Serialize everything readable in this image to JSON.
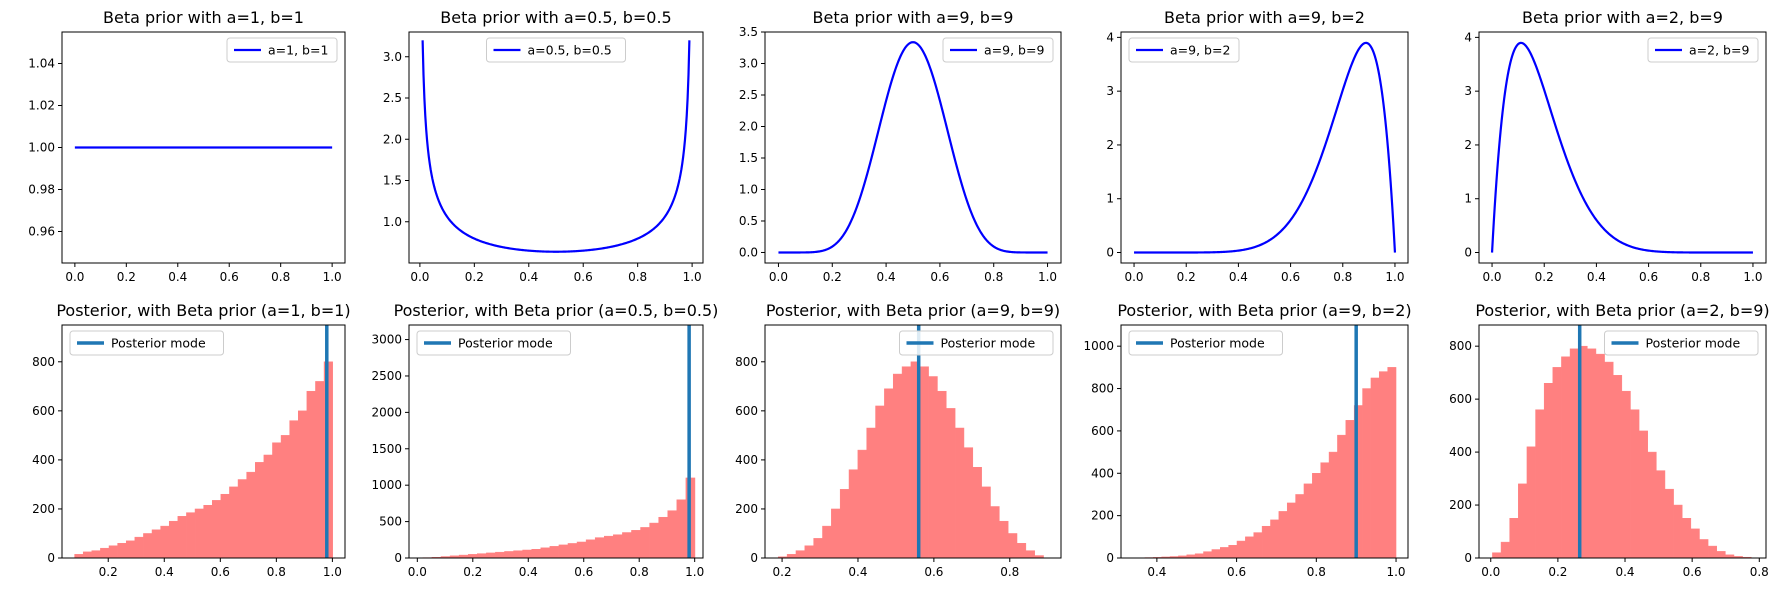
{
  "colors": {
    "prior_line": "#0000ff",
    "hist_fill": "#ff8080",
    "mode_line": "#1f77b4"
  },
  "chart_data": [
    {
      "type": "line",
      "title": "Beta prior with a=1, b=1",
      "series": [
        {
          "name": "a=1, b=1",
          "kind": "beta_pdf",
          "a": 1,
          "b": 1,
          "x_range": [
            0,
            1
          ]
        }
      ],
      "xlim": [
        -0.05,
        1.05
      ],
      "ylim": [
        0.945,
        1.055
      ],
      "xticks": [
        0,
        0.2,
        0.4,
        0.6,
        0.8,
        1
      ],
      "xtick_labels": [
        "0.0",
        "0.2",
        "0.4",
        "0.6",
        "0.8",
        "1.0"
      ],
      "yticks": [
        0.96,
        0.98,
        1.0,
        1.02,
        1.04
      ],
      "ytick_labels": [
        "0.96",
        "0.98",
        "1.00",
        "1.02",
        "1.04"
      ],
      "legend": "top-right"
    },
    {
      "type": "line",
      "title": "Beta prior with a=0.5, b=0.5",
      "series": [
        {
          "name": "a=0.5, b=0.5",
          "kind": "beta_pdf",
          "a": 0.5,
          "b": 0.5,
          "x_range": [
            0.01,
            0.99
          ]
        }
      ],
      "xlim": [
        -0.04,
        1.04
      ],
      "ylim": [
        0.5,
        3.3
      ],
      "xticks": [
        0,
        0.2,
        0.4,
        0.6,
        0.8,
        1
      ],
      "xtick_labels": [
        "0.0",
        "0.2",
        "0.4",
        "0.6",
        "0.8",
        "1.0"
      ],
      "yticks": [
        1.0,
        1.5,
        2.0,
        2.5,
        3.0
      ],
      "ytick_labels": [
        "1.0",
        "1.5",
        "2.0",
        "2.5",
        "3.0"
      ],
      "legend": "top-center"
    },
    {
      "type": "line",
      "title": "Beta prior with a=9, b=9",
      "series": [
        {
          "name": "a=9, b=9",
          "kind": "beta_pdf",
          "a": 9,
          "b": 9,
          "x_range": [
            0,
            1
          ]
        }
      ],
      "xlim": [
        -0.05,
        1.05
      ],
      "ylim": [
        -0.167,
        3.5
      ],
      "xticks": [
        0,
        0.2,
        0.4,
        0.6,
        0.8,
        1
      ],
      "xtick_labels": [
        "0.0",
        "0.2",
        "0.4",
        "0.6",
        "0.8",
        "1.0"
      ],
      "yticks": [
        0,
        0.5,
        1.0,
        1.5,
        2.0,
        2.5,
        3.0,
        3.5
      ],
      "ytick_labels": [
        "0.0",
        "0.5",
        "1.0",
        "1.5",
        "2.0",
        "2.5",
        "3.0",
        "3.5"
      ],
      "legend": "top-right"
    },
    {
      "type": "line",
      "title": "Beta prior with a=9, b=2",
      "series": [
        {
          "name": "a=9, b=2",
          "kind": "beta_pdf",
          "a": 9,
          "b": 2,
          "x_range": [
            0,
            1
          ]
        }
      ],
      "xlim": [
        -0.05,
        1.05
      ],
      "ylim": [
        -0.195,
        4.1
      ],
      "xticks": [
        0,
        0.2,
        0.4,
        0.6,
        0.8,
        1
      ],
      "xtick_labels": [
        "0.0",
        "0.2",
        "0.4",
        "0.6",
        "0.8",
        "1.0"
      ],
      "yticks": [
        0,
        1,
        2,
        3,
        4
      ],
      "ytick_labels": [
        "0",
        "1",
        "2",
        "3",
        "4"
      ],
      "legend": "top-left"
    },
    {
      "type": "line",
      "title": "Beta prior with a=2, b=9",
      "series": [
        {
          "name": "a=2, b=9",
          "kind": "beta_pdf",
          "a": 2,
          "b": 9,
          "x_range": [
            0,
            1
          ]
        }
      ],
      "xlim": [
        -0.05,
        1.05
      ],
      "ylim": [
        -0.195,
        4.1
      ],
      "xticks": [
        0,
        0.2,
        0.4,
        0.6,
        0.8,
        1
      ],
      "xtick_labels": [
        "0.0",
        "0.2",
        "0.4",
        "0.6",
        "0.8",
        "1.0"
      ],
      "yticks": [
        0,
        1,
        2,
        3,
        4
      ],
      "ytick_labels": [
        "0",
        "1",
        "2",
        "3",
        "4"
      ],
      "legend": "top-right"
    },
    {
      "type": "bar",
      "title": "Posterior, with Beta prior (a=1, b=1)",
      "bins": {
        "start": 0.08,
        "width": 0.0307
      },
      "values": [
        15,
        25,
        30,
        40,
        50,
        60,
        70,
        85,
        100,
        115,
        130,
        150,
        170,
        185,
        200,
        215,
        235,
        260,
        290,
        320,
        350,
        390,
        420,
        470,
        500,
        560,
        600,
        680,
        720,
        800
      ],
      "mode": 0.98,
      "legend_entry": "Posterior mode",
      "xlim": [
        0.035,
        1.045
      ],
      "ylim": [
        0,
        950
      ],
      "xticks": [
        0.2,
        0.4,
        0.6,
        0.8,
        1.0
      ],
      "xtick_labels": [
        "0.2",
        "0.4",
        "0.6",
        "0.8",
        "1.0"
      ],
      "yticks": [
        0,
        200,
        400,
        600,
        800
      ],
      "ytick_labels": [
        "0",
        "200",
        "400",
        "600",
        "800"
      ],
      "legend": "top-left"
    },
    {
      "type": "bar",
      "title": "Posterior, with Beta prior (a=0.5, b=0.5)",
      "bins": {
        "start": 0.02,
        "width": 0.0327
      },
      "values": [
        5,
        10,
        20,
        30,
        40,
        50,
        60,
        70,
        80,
        90,
        100,
        110,
        120,
        140,
        160,
        180,
        200,
        220,
        250,
        280,
        300,
        320,
        350,
        380,
        420,
        480,
        560,
        650,
        800,
        1100
      ],
      "mode": 0.98,
      "legend_entry": "Posterior mode",
      "xlim": [
        -0.03,
        1.03
      ],
      "ylim": [
        0,
        3200
      ],
      "xticks": [
        0,
        0.2,
        0.4,
        0.6,
        0.8,
        1.0
      ],
      "xtick_labels": [
        "0.0",
        "0.2",
        "0.4",
        "0.6",
        "0.8",
        "1.0"
      ],
      "yticks": [
        0,
        500,
        1000,
        1500,
        2000,
        2500,
        3000
      ],
      "ytick_labels": [
        "0",
        "500",
        "1000",
        "1500",
        "2000",
        "2500",
        "3000"
      ],
      "legend": "top-left"
    },
    {
      "type": "bar",
      "title": "Posterior, with Beta prior (a=9, b=9)",
      "bins": {
        "start": 0.19,
        "width": 0.0233
      },
      "values": [
        5,
        15,
        30,
        50,
        80,
        130,
        200,
        280,
        360,
        440,
        530,
        620,
        690,
        750,
        780,
        800,
        780,
        740,
        680,
        610,
        530,
        450,
        370,
        290,
        210,
        150,
        100,
        60,
        30,
        10
      ],
      "mode": 0.56,
      "legend_entry": "Posterior mode",
      "xlim": [
        0.155,
        0.935
      ],
      "ylim": [
        0,
        950
      ],
      "xticks": [
        0.2,
        0.4,
        0.6,
        0.8
      ],
      "xtick_labels": [
        "0.2",
        "0.4",
        "0.6",
        "0.8"
      ],
      "yticks": [
        0,
        200,
        400,
        600,
        800
      ],
      "ytick_labels": [
        "0",
        "200",
        "400",
        "600",
        "800"
      ],
      "legend": "top-right"
    },
    {
      "type": "bar",
      "title": "Posterior, with Beta prior (a=9, b=2)",
      "bins": {
        "start": 0.37,
        "width": 0.021
      },
      "values": [
        2,
        3,
        5,
        7,
        10,
        15,
        20,
        30,
        40,
        50,
        60,
        80,
        100,
        120,
        150,
        180,
        220,
        260,
        300,
        350,
        400,
        450,
        500,
        580,
        650,
        720,
        800,
        850,
        880,
        900
      ],
      "mode": 0.9,
      "legend_entry": "Posterior mode",
      "xlim": [
        0.31,
        1.03
      ],
      "ylim": [
        0,
        1100
      ],
      "xticks": [
        0.4,
        0.6,
        0.8,
        1.0
      ],
      "xtick_labels": [
        "0.4",
        "0.6",
        "0.8",
        "1.0"
      ],
      "yticks": [
        0,
        200,
        400,
        600,
        800,
        1000
      ],
      "ytick_labels": [
        "0",
        "200",
        "400",
        "600",
        "800",
        "1000"
      ],
      "legend": "top-left"
    },
    {
      "type": "bar",
      "title": "Posterior, with Beta prior (a=2, b=9)",
      "bins": {
        "start": 0.005,
        "width": 0.0257
      },
      "values": [
        20,
        60,
        150,
        280,
        420,
        560,
        660,
        720,
        760,
        790,
        800,
        790,
        770,
        740,
        690,
        630,
        560,
        480,
        400,
        330,
        260,
        200,
        150,
        110,
        70,
        45,
        25,
        12,
        6,
        3
      ],
      "mode": 0.265,
      "legend_entry": "Posterior mode",
      "xlim": [
        -0.035,
        0.82
      ],
      "ylim": [
        0,
        880
      ],
      "xticks": [
        0,
        0.2,
        0.4,
        0.6,
        0.8
      ],
      "xtick_labels": [
        "0.0",
        "0.2",
        "0.4",
        "0.6",
        "0.8"
      ],
      "yticks": [
        0,
        200,
        400,
        600,
        800
      ],
      "ytick_labels": [
        "0",
        "200",
        "400",
        "600",
        "800"
      ],
      "legend": "top-right"
    }
  ]
}
